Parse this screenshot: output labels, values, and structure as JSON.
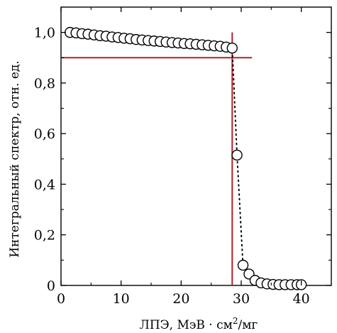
{
  "chart_data": {
    "type": "scatter",
    "title": "",
    "xlabel_main": "ЛПЭ, МэВ · см",
    "xlabel_sup": "2",
    "xlabel_tail": "/мг",
    "ylabel": "Интегральный спектр, отн. ед.",
    "xlim": [
      0,
      45
    ],
    "ylim": [
      0,
      1.1
    ],
    "x_ticks": [
      0,
      10,
      20,
      30,
      40
    ],
    "x_tick_labels": [
      "0",
      "10",
      "20",
      "30",
      "40"
    ],
    "y_ticks": [
      0,
      0.2,
      0.4,
      0.6,
      0.8,
      1.0
    ],
    "y_tick_labels": [
      "0",
      "0,2",
      "0,4",
      "0,6",
      "0,8",
      "1,0"
    ],
    "grid": false,
    "series": [
      {
        "marker": "open-circle",
        "line": "dotted",
        "x": [
          1.5,
          2.5,
          3.5,
          4.5,
          5.5,
          6.5,
          7.5,
          8.5,
          9.5,
          10.5,
          11.5,
          12.5,
          13.5,
          14.5,
          15.5,
          16.5,
          17.5,
          18.5,
          19.5,
          20.5,
          21.5,
          22.5,
          23.5,
          24.5,
          25.5,
          26.5,
          27.5,
          28.5,
          29.3,
          30.3,
          31.3,
          32.3,
          33.3,
          34.3,
          35.3,
          36.3,
          37.3,
          38.3,
          39.3,
          40.0
        ],
        "y": [
          1.0,
          0.998,
          0.995,
          0.993,
          0.99,
          0.987,
          0.985,
          0.982,
          0.98,
          0.977,
          0.975,
          0.972,
          0.97,
          0.968,
          0.966,
          0.964,
          0.962,
          0.96,
          0.958,
          0.956,
          0.955,
          0.953,
          0.951,
          0.949,
          0.947,
          0.945,
          0.942,
          0.938,
          0.515,
          0.08,
          0.045,
          0.02,
          0.01,
          0.006,
          0.004,
          0.003,
          0.003,
          0.003,
          0.003,
          0.003
        ]
      }
    ],
    "reference_lines": {
      "horizontal_y": 0.9,
      "horizontal_x_range": [
        0,
        31.8
      ],
      "vertical_x": 28.5,
      "vertical_y_range": [
        0,
        1.0
      ],
      "color": "#b0202a"
    }
  }
}
